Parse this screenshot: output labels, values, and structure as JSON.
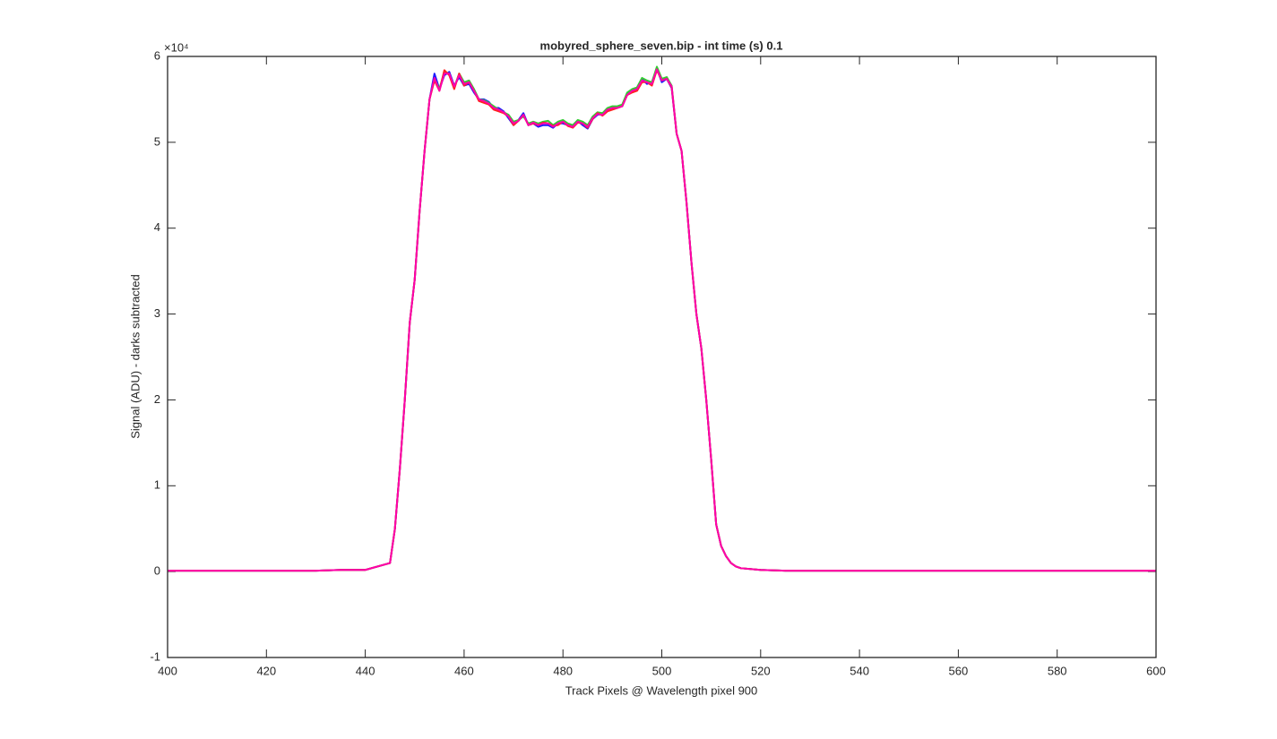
{
  "chart_data": {
    "type": "line",
    "title": "mobyred_sphere_seven.bip - int time (s) 0.1",
    "x_label": "Track Pixels @ Wavelength pixel 900",
    "y_label": "Signal (ADU) - darks subtracted",
    "y_multiplier": "×10⁴",
    "xlim": [
      400,
      600
    ],
    "xticks": [
      400,
      420,
      440,
      460,
      480,
      500,
      520,
      540,
      560,
      580,
      600
    ],
    "ylim": [
      -1,
      6
    ],
    "yticks": [
      -1,
      0,
      1,
      2,
      3,
      4,
      5,
      6
    ],
    "grid": false,
    "x": [
      400,
      405,
      410,
      415,
      420,
      425,
      430,
      435,
      440,
      445,
      446,
      447,
      448,
      449,
      450,
      451,
      452,
      453,
      454,
      455,
      456,
      457,
      458,
      459,
      460,
      461,
      462,
      463,
      464,
      465,
      466,
      467,
      468,
      469,
      470,
      471,
      472,
      473,
      474,
      475,
      476,
      477,
      478,
      479,
      480,
      481,
      482,
      483,
      484,
      485,
      486,
      487,
      488,
      489,
      490,
      491,
      492,
      493,
      494,
      495,
      496,
      497,
      498,
      499,
      500,
      501,
      502,
      503,
      504,
      505,
      506,
      507,
      508,
      509,
      510,
      511,
      512,
      513,
      514,
      515,
      516,
      520,
      525,
      530,
      535,
      540,
      545,
      550,
      555,
      560,
      565,
      570,
      575,
      580,
      585,
      590,
      595,
      600
    ],
    "series": [
      {
        "name": "blue",
        "color": "#1a1aff",
        "values": [
          0.01,
          0.01,
          0.01,
          0.01,
          0.01,
          0.01,
          0.01,
          0.02,
          0.02,
          0.1,
          0.5,
          1.2,
          2.0,
          2.9,
          3.4,
          4.2,
          4.9,
          5.5,
          5.8,
          5.62,
          5.78,
          5.82,
          5.66,
          5.76,
          5.66,
          5.68,
          5.58,
          5.5,
          5.5,
          5.47,
          5.4,
          5.4,
          5.36,
          5.28,
          5.2,
          5.26,
          5.34,
          5.2,
          5.22,
          5.18,
          5.2,
          5.2,
          5.17,
          5.22,
          5.22,
          5.2,
          5.2,
          5.25,
          5.2,
          5.16,
          5.27,
          5.32,
          5.33,
          5.37,
          5.4,
          5.41,
          5.42,
          5.56,
          5.6,
          5.64,
          5.74,
          5.68,
          5.7,
          5.86,
          5.7,
          5.74,
          5.63,
          5.1,
          4.9,
          4.3,
          3.6,
          3.0,
          2.6,
          2.0,
          1.3,
          0.55,
          0.3,
          0.18,
          0.1,
          0.06,
          0.04,
          0.02,
          0.01,
          0.01,
          0.01,
          0.01,
          0.01,
          0.01,
          0.01,
          0.01,
          0.01,
          0.01,
          0.01,
          0.01,
          0.01,
          0.01,
          0.01,
          0.01
        ]
      },
      {
        "name": "green",
        "color": "#33cc33",
        "values": [
          0.01,
          0.01,
          0.01,
          0.01,
          0.01,
          0.01,
          0.01,
          0.02,
          0.02,
          0.1,
          0.5,
          1.2,
          2.0,
          2.9,
          3.4,
          4.2,
          4.9,
          5.5,
          5.74,
          5.62,
          5.82,
          5.8,
          5.64,
          5.8,
          5.7,
          5.72,
          5.62,
          5.5,
          5.49,
          5.46,
          5.42,
          5.38,
          5.35,
          5.32,
          5.24,
          5.26,
          5.3,
          5.22,
          5.24,
          5.22,
          5.24,
          5.25,
          5.2,
          5.24,
          5.26,
          5.22,
          5.2,
          5.26,
          5.24,
          5.2,
          5.3,
          5.35,
          5.34,
          5.4,
          5.42,
          5.42,
          5.44,
          5.58,
          5.62,
          5.64,
          5.75,
          5.72,
          5.7,
          5.88,
          5.74,
          5.76,
          5.66,
          5.1,
          4.9,
          4.3,
          3.6,
          3.0,
          2.6,
          2.0,
          1.3,
          0.55,
          0.3,
          0.18,
          0.1,
          0.06,
          0.04,
          0.02,
          0.01,
          0.01,
          0.01,
          0.01,
          0.01,
          0.01,
          0.01,
          0.01,
          0.01,
          0.01,
          0.01,
          0.01,
          0.01,
          0.01,
          0.01,
          0.01
        ]
      },
      {
        "name": "red",
        "color": "#ff2020",
        "values": [
          0.01,
          0.01,
          0.01,
          0.01,
          0.01,
          0.01,
          0.01,
          0.02,
          0.02,
          0.1,
          0.5,
          1.2,
          2.0,
          2.9,
          3.4,
          4.2,
          4.9,
          5.5,
          5.72,
          5.6,
          5.84,
          5.78,
          5.62,
          5.8,
          5.66,
          5.7,
          5.6,
          5.48,
          5.46,
          5.44,
          5.38,
          5.36,
          5.34,
          5.3,
          5.2,
          5.25,
          5.32,
          5.2,
          5.22,
          5.2,
          5.23,
          5.22,
          5.19,
          5.2,
          5.24,
          5.19,
          5.17,
          5.23,
          5.22,
          5.17,
          5.27,
          5.34,
          5.31,
          5.36,
          5.38,
          5.4,
          5.42,
          5.55,
          5.58,
          5.6,
          5.7,
          5.7,
          5.66,
          5.84,
          5.72,
          5.74,
          5.64,
          5.1,
          4.9,
          4.3,
          3.6,
          3.0,
          2.6,
          2.0,
          1.3,
          0.55,
          0.3,
          0.18,
          0.1,
          0.06,
          0.04,
          0.02,
          0.01,
          0.01,
          0.01,
          0.01,
          0.01,
          0.01,
          0.01,
          0.01,
          0.01,
          0.01,
          0.01,
          0.01,
          0.01,
          0.01,
          0.01,
          0.01
        ]
      },
      {
        "name": "magenta",
        "color": "#ff00aa",
        "values": [
          0.01,
          0.01,
          0.01,
          0.01,
          0.01,
          0.01,
          0.01,
          0.02,
          0.02,
          0.1,
          0.5,
          1.2,
          2.0,
          2.9,
          3.4,
          4.2,
          4.9,
          5.5,
          5.75,
          5.6,
          5.8,
          5.8,
          5.65,
          5.78,
          5.68,
          5.7,
          5.6,
          5.5,
          5.48,
          5.45,
          5.4,
          5.38,
          5.35,
          5.3,
          5.22,
          5.25,
          5.32,
          5.2,
          5.23,
          5.2,
          5.22,
          5.22,
          5.18,
          5.22,
          5.24,
          5.2,
          5.18,
          5.24,
          5.22,
          5.18,
          5.28,
          5.33,
          5.32,
          5.38,
          5.4,
          5.4,
          5.42,
          5.55,
          5.6,
          5.62,
          5.72,
          5.7,
          5.68,
          5.85,
          5.72,
          5.74,
          5.65,
          5.1,
          4.9,
          4.3,
          3.6,
          3.0,
          2.6,
          2.0,
          1.3,
          0.55,
          0.3,
          0.18,
          0.1,
          0.06,
          0.04,
          0.02,
          0.01,
          0.01,
          0.01,
          0.01,
          0.01,
          0.01,
          0.01,
          0.01,
          0.01,
          0.01,
          0.01,
          0.01,
          0.01,
          0.01,
          0.01,
          0.01
        ]
      }
    ]
  }
}
